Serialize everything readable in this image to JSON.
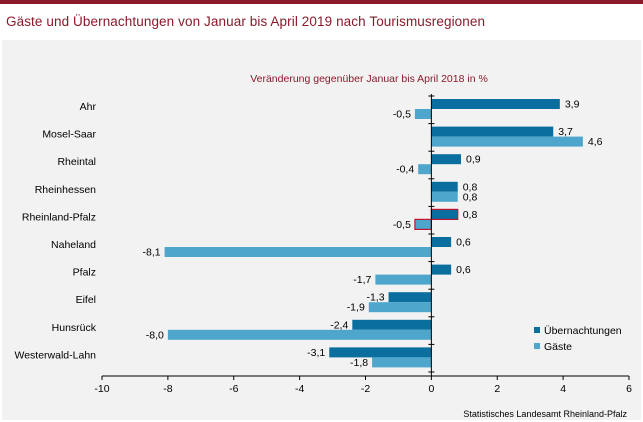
{
  "title": "Gäste und Übernachtungen von Januar bis April 2019 nach Tourismusregionen",
  "source": "Statistisches Landesamt Rheinland-Pfalz",
  "chart_data": {
    "type": "bar",
    "orientation": "horizontal",
    "subtitle": "Veränderung gegenüber Januar bis April 2018 in %",
    "categories": [
      "Ahr",
      "Mosel-Saar",
      "Rheintal",
      "Rheinhessen",
      "Rheinland-Pfalz",
      "Naheland",
      "Pfalz",
      "Eifel",
      "Hunsrück",
      "Westerwald-Lahn"
    ],
    "series": [
      {
        "name": "Übernachtungen",
        "color": "#0a6e9e",
        "values": [
          3.9,
          3.7,
          0.9,
          0.8,
          0.8,
          0.6,
          0.6,
          -1.3,
          -2.4,
          -3.1
        ]
      },
      {
        "name": "Gäste",
        "color": "#4ea6cc",
        "values": [
          -0.5,
          4.6,
          -0.4,
          0.8,
          -0.5,
          -8.1,
          -1.7,
          -1.9,
          -8.0,
          -1.8
        ]
      }
    ],
    "value_labels": [
      [
        "3,9",
        "-0,5"
      ],
      [
        "3,7",
        "4,6"
      ],
      [
        "0,9",
        "-0,4"
      ],
      [
        "0,8",
        "0,8"
      ],
      [
        "0,8",
        "-0,5"
      ],
      [
        "0,6",
        "-8,1"
      ],
      [
        "0,6",
        "-1,7"
      ],
      [
        "-1,3",
        "-1,9"
      ],
      [
        "-2,4",
        "-8,0"
      ],
      [
        "-3,1",
        "-1,8"
      ]
    ],
    "highlight_category": "Rheinland-Pfalz",
    "highlight_color": "#c0152f",
    "xlim": [
      -10,
      6
    ],
    "xticks": [
      -10,
      -8,
      -6,
      -4,
      -2,
      0,
      2,
      4,
      6
    ],
    "xtick_labels": [
      "-10",
      "-8",
      "-6",
      "-4",
      "-2",
      "0",
      "2",
      "4",
      "6"
    ],
    "grid": false,
    "legend_position": "bottom-right"
  }
}
